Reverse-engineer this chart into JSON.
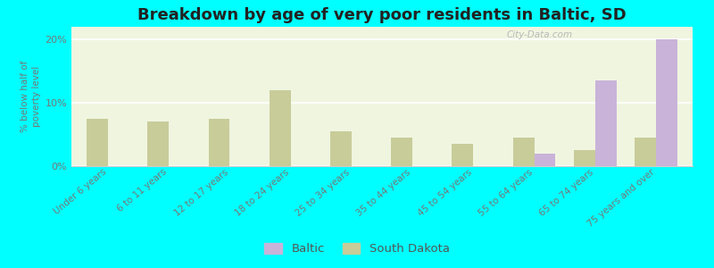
{
  "title": "Breakdown by age of very poor residents in Baltic, SD",
  "ylabel": "% below half of\npoverty level",
  "categories": [
    "Under 6 years",
    "6 to 11 years",
    "12 to 17 years",
    "18 to 24 years",
    "25 to 34 years",
    "35 to 44 years",
    "45 to 54 years",
    "55 to 64 years",
    "65 to 74 years",
    "75 years and over"
  ],
  "baltic_values": [
    null,
    null,
    null,
    null,
    null,
    null,
    null,
    2.0,
    13.5,
    20.0
  ],
  "sd_values": [
    7.5,
    7.0,
    7.5,
    12.0,
    5.5,
    4.5,
    3.5,
    4.5,
    2.5,
    4.5
  ],
  "baltic_color": "#c9b3d9",
  "sd_color": "#c8cc99",
  "ylim": [
    0,
    22
  ],
  "yticks": [
    0,
    10,
    20
  ],
  "ytick_labels": [
    "0%",
    "10%",
    "20%"
  ],
  "bar_width": 0.35,
  "title_fontsize": 13,
  "axis_bg_color_light": "#f0f5e0",
  "axis_bg_color_dark": "#d8e8b8",
  "outer_bg_color": "#00ffff",
  "legend_labels": [
    "Baltic",
    "South Dakota"
  ],
  "legend_colors": [
    "#c9b3d9",
    "#c8cc99"
  ],
  "watermark": "City-Data.com",
  "tick_label_color": "#777777",
  "ylabel_color": "#777777",
  "title_color": "#222222",
  "grid_color": "#ffffff",
  "spine_color": "#cccccc"
}
